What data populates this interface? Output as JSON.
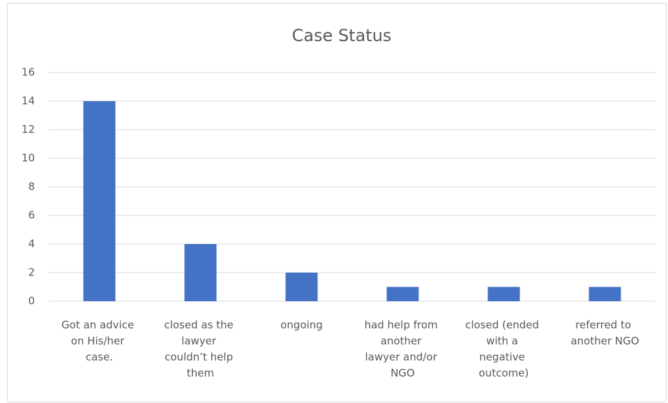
{
  "chart_data": {
    "type": "bar",
    "title": "Case Status",
    "categories": [
      "Got an advice on His/her case.",
      "closed as the lawyer couldn’t help them",
      "ongoing",
      "had help from another lawyer and/or NGO",
      "closed (ended with a negative outcome)",
      "referred to another NGO"
    ],
    "values": [
      14,
      4,
      2,
      1,
      1,
      1
    ],
    "color": "#4472c4",
    "ylim": [
      0,
      16
    ],
    "yticks": [
      0,
      2,
      4,
      6,
      8,
      10,
      12,
      14,
      16
    ],
    "grid": true
  }
}
